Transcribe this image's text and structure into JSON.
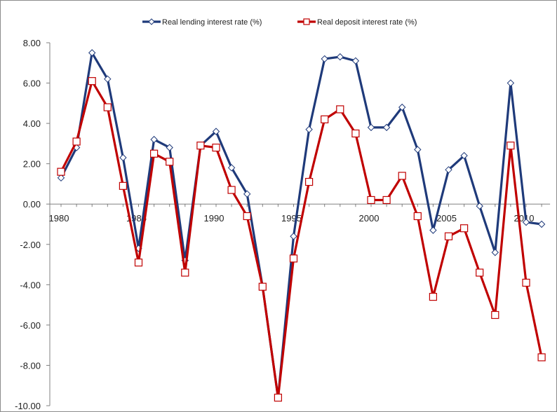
{
  "chart_data": {
    "type": "line",
    "title": "",
    "xlabel": "",
    "ylabel": "",
    "x": [
      1980,
      1981,
      1982,
      1983,
      1984,
      1985,
      1986,
      1987,
      1988,
      1989,
      1990,
      1991,
      1992,
      1993,
      1994,
      1995,
      1996,
      1997,
      1998,
      1999,
      2000,
      2001,
      2002,
      2003,
      2004,
      2005,
      2006,
      2007,
      2008,
      2009,
      2010,
      2011
    ],
    "x_ticks": [
      1980,
      1985,
      1990,
      1995,
      2000,
      2005,
      2010
    ],
    "x_tick_labels": [
      "1980",
      "1985",
      "1990",
      "1995",
      "2000",
      "2005",
      "2010"
    ],
    "ylim": [
      -10,
      8
    ],
    "y_ticks": [
      8,
      6,
      4,
      2,
      0,
      -2,
      -4,
      -6,
      -8,
      -10
    ],
    "y_tick_labels": [
      "8.00",
      "6.00",
      "4.00",
      "2.00",
      "0.00",
      "-2.00",
      "-4.00",
      "-6.00",
      "-8.00",
      "-10.00"
    ],
    "grid": false,
    "legend_position": "top",
    "series": [
      {
        "name": "Real lending interest rate (%)",
        "color": "#1f3a7a",
        "marker": "diamond",
        "values": [
          1.3,
          2.8,
          7.5,
          6.2,
          2.3,
          -2.2,
          3.2,
          2.8,
          -2.8,
          2.9,
          3.6,
          1.8,
          0.5,
          -4.1,
          -9.6,
          -1.6,
          3.7,
          7.2,
          7.3,
          7.1,
          3.8,
          3.8,
          4.8,
          2.7,
          -1.3,
          1.7,
          2.4,
          -0.1,
          -2.4,
          6.0,
          -0.9,
          -1.0
        ]
      },
      {
        "name": "Real deposit interest rate (%)",
        "color": "#c00000",
        "marker": "square",
        "values": [
          1.6,
          3.1,
          6.1,
          4.8,
          0.9,
          -2.9,
          2.5,
          2.1,
          -3.4,
          2.9,
          2.8,
          0.7,
          -0.6,
          -4.1,
          -9.6,
          -2.7,
          1.1,
          4.2,
          4.7,
          3.5,
          0.2,
          0.2,
          1.4,
          -0.6,
          -4.6,
          -1.6,
          -1.2,
          -3.4,
          -5.5,
          2.9,
          -3.9,
          -7.6
        ]
      }
    ]
  }
}
